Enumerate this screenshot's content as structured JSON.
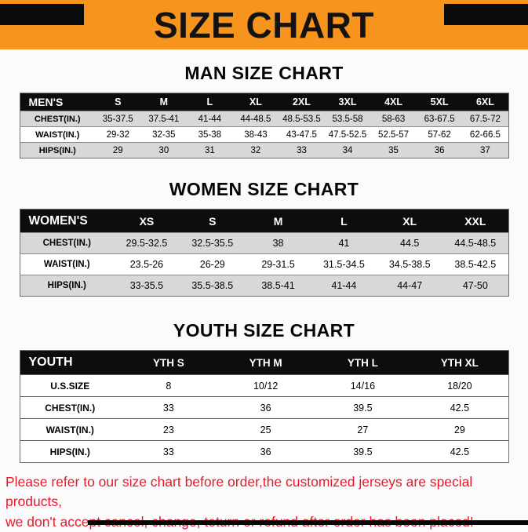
{
  "banner": {
    "title": "SIZE CHART",
    "bg_color": "#F7941D",
    "corner_color": "#0B0B0B"
  },
  "sections": [
    {
      "heading": "MAN SIZE CHART",
      "table": {
        "header": [
          "MEN'S",
          "S",
          "M",
          "L",
          "XL",
          "2XL",
          "3XL",
          "4XL",
          "5XL",
          "6XL"
        ],
        "rows": [
          [
            "CHEST(IN.)",
            "35-37.5",
            "37.5-41",
            "41-44",
            "44-48.5",
            "48.5-53.5",
            "53.5-58",
            "58-63",
            "63-67.5",
            "67.5-72"
          ],
          [
            "WAIST(IN.)",
            "29-32",
            "32-35",
            "35-38",
            "38-43",
            "43-47.5",
            "47.5-52.5",
            "52.5-57",
            "57-62",
            "62-66.5"
          ],
          [
            "HIPS(IN.)",
            "29",
            "30",
            "31",
            "32",
            "33",
            "34",
            "35",
            "36",
            "37"
          ]
        ]
      }
    },
    {
      "heading": "WOMEN SIZE CHART",
      "table": {
        "header": [
          "WOMEN'S",
          "XS",
          "S",
          "M",
          "L",
          "XL",
          "XXL"
        ],
        "rows": [
          [
            "CHEST(IN.)",
            "29.5-32.5",
            "32.5-35.5",
            "38",
            "41",
            "44.5",
            "44.5-48.5"
          ],
          [
            "WAIST(IN.)",
            "23.5-26",
            "26-29",
            "29-31.5",
            "31.5-34.5",
            "34.5-38.5",
            "38.5-42.5"
          ],
          [
            "HIPS(IN.)",
            "33-35.5",
            "35.5-38.5",
            "38.5-41",
            "41-44",
            "44-47",
            "47-50"
          ]
        ]
      }
    },
    {
      "heading": "YOUTH SIZE CHART",
      "table": {
        "header": [
          "YOUTH",
          "YTH S",
          "YTH M",
          "YTH L",
          "YTH XL"
        ],
        "rows": [
          [
            "U.S.SIZE",
            "8",
            "10/12",
            "14/16",
            "18/20"
          ],
          [
            "CHEST(IN.)",
            "33",
            "36",
            "39.5",
            "42.5"
          ],
          [
            "WAIST(IN.)",
            "23",
            "25",
            "27",
            "29"
          ],
          [
            "HIPS(IN.)",
            "33",
            "36",
            "39.5",
            "42.5"
          ]
        ]
      }
    }
  ],
  "table_style": {
    "header_bg": "#0D0D0D",
    "header_text": "#FFFFFF",
    "stripe_color": "#D8D8D8"
  },
  "footer": {
    "line1": "Please refer to our size chart before order,the customized jerseys are special products,",
    "line2": "we don't accept cancel, change, teturn or refund after order has been placed!",
    "text_color": "#E8192C"
  }
}
